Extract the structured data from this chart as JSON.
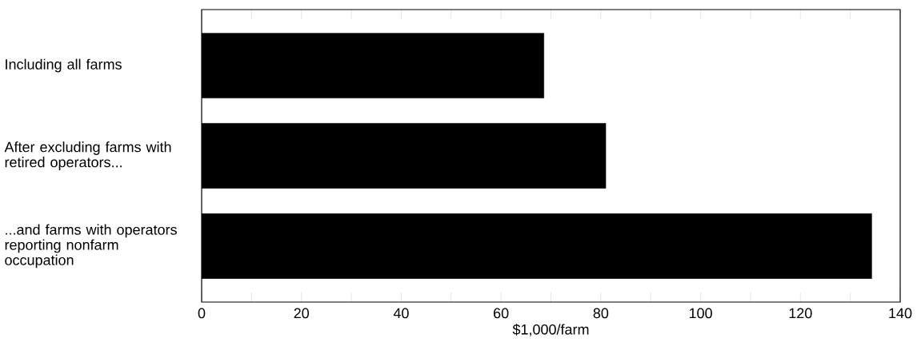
{
  "chart_data": {
    "type": "bar",
    "orientation": "horizontal",
    "xlabel": "$1,000/farm",
    "categories": [
      "Including all farms",
      "After excluding farms with retired operators...",
      "...and farms with operators reporting nonfarm occupation"
    ],
    "values": [
      68.6,
      81.0,
      134.3
    ],
    "color": "#000000",
    "xlim": [
      0,
      140
    ],
    "xticks": [
      0,
      {
        "value": 10,
        "label": null
      },
      20,
      {
        "value": 30,
        "label": null
      },
      40,
      {
        "value": 50,
        "label": null
      },
      60,
      {
        "value": 70,
        "label": null
      },
      80,
      {
        "value": 90,
        "label": null
      },
      100,
      {
        "value": 110,
        "label": null
      },
      120,
      {
        "value": 130,
        "label": null
      },
      140
    ]
  }
}
